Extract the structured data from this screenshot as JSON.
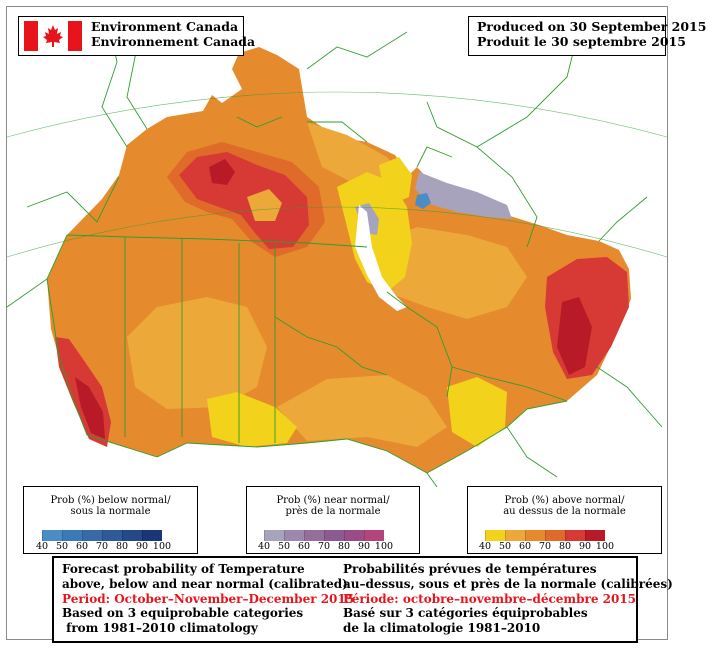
{
  "header": {
    "org_en": "Environment Canada",
    "org_fr": "Environnement Canada",
    "produced_en": "Produced on 30 September 2015",
    "produced_fr": "Produit le 30 septembre 2015"
  },
  "legends": [
    {
      "id": "below",
      "title_en": "Prob (%) below normal/",
      "title_fr": "sous la normale",
      "ticks": [
        "40",
        "50",
        "60",
        "70",
        "80",
        "90",
        "100"
      ],
      "colors": [
        "#4a8dc6",
        "#3a7ab6",
        "#3869a8",
        "#2f5a9a",
        "#25488a",
        "#1b3678"
      ]
    },
    {
      "id": "near",
      "title_en": "Prob (%) near normal/",
      "title_fr": "près de la normale",
      "ticks": [
        "40",
        "50",
        "60",
        "70",
        "80",
        "90",
        "100"
      ],
      "colors": [
        "#a7a3bc",
        "#9c88ac",
        "#946f9c",
        "#8c5a90",
        "#9a4c86",
        "#b4457c"
      ]
    },
    {
      "id": "above",
      "title_en": "Prob (%) above normal/",
      "title_fr": "au dessus de la normale",
      "ticks": [
        "40",
        "50",
        "60",
        "70",
        "80",
        "90",
        "100"
      ],
      "colors": [
        "#f2d21a",
        "#eda83a",
        "#e68a2e",
        "#df6a2a",
        "#d73a34",
        "#b81a28"
      ]
    }
  ],
  "info": {
    "en": {
      "line1": "Forecast probability of Temperature",
      "line2": "above, below and near normal (calibrated)",
      "period": "Period: October–November–December 2015",
      "line4": "Based on 3 equiprobable categories",
      "line5": " from 1981–2010 climatology"
    },
    "fr": {
      "line1": "Probabilités prévues de températures",
      "line2": "au–dessus, sous et près de la normale (calibrées)",
      "period": "Période: octobre–novembre–décembre 2015",
      "line4": "Basé sur 3 catégories équiprobables",
      "line5": "de la climatologie 1981–2010"
    }
  },
  "colors": {
    "above_40": "#f2d21a",
    "above_50": "#eda83a",
    "above_60": "#e68a2e",
    "above_70": "#df6a2a",
    "above_80": "#d73a34",
    "above_90": "#b81a28",
    "near_40": "#a7a3bc",
    "below_40": "#4a8dc6",
    "boundary": "#2e9e2e",
    "period_text": "#e8141c"
  }
}
